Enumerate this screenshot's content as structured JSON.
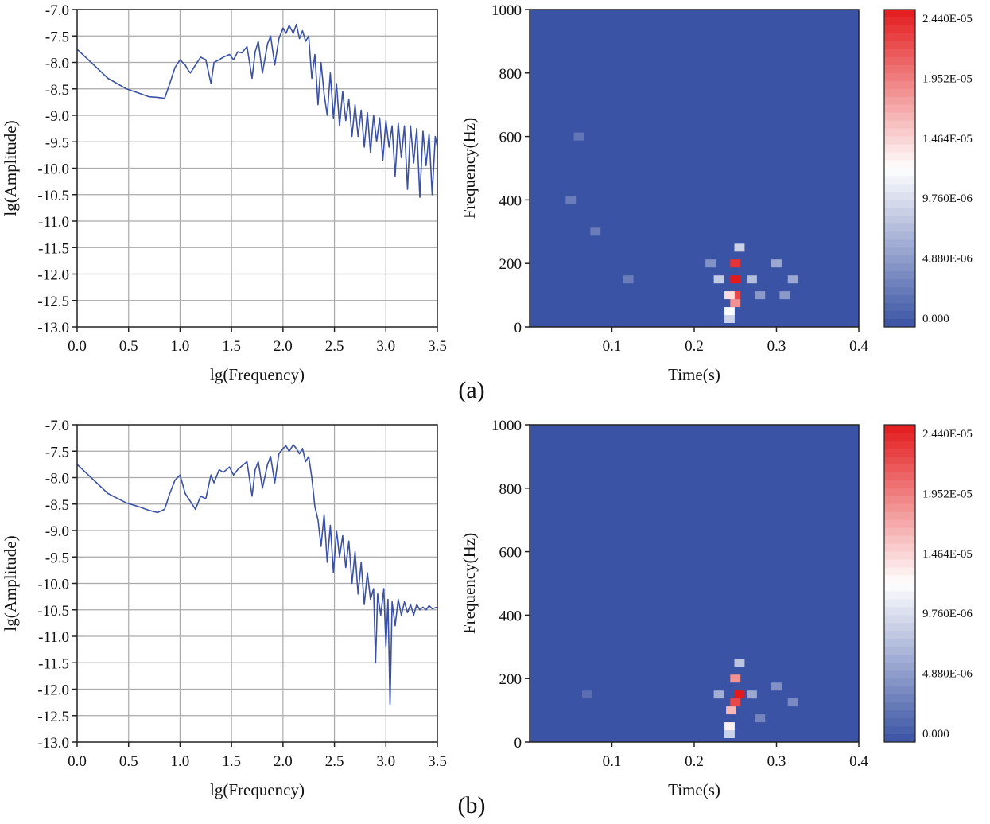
{
  "figure": {
    "panels": [
      {
        "label": "(a)",
        "spectrum_id": "a-spectrum",
        "spectrogram_id": "a-spectrogram"
      },
      {
        "label": "(b)",
        "spectrum_id": "b-spectrum",
        "spectrogram_id": "b-spectrogram"
      }
    ]
  },
  "colors": {
    "line": "#3a51a6",
    "heat_low": "#3a53a4",
    "heat_mid": "#ffffff",
    "heat_high": "#e31a1c",
    "grid": "#aaaaaa",
    "axis": "#222222"
  },
  "chart_data": [
    {
      "id": "a-spectrum",
      "type": "line",
      "title": "",
      "xlabel": "lg(Frequency)",
      "ylabel": "lg(Amplitude)",
      "xlim": [
        0.0,
        3.5
      ],
      "ylim": [
        -13.0,
        -7.0
      ],
      "xticks": [
        "0.0",
        "0.5",
        "1.0",
        "1.5",
        "2.0",
        "2.5",
        "3.0",
        "3.5"
      ],
      "yticks": [
        "-7.0",
        "-7.5",
        "-8.0",
        "-8.5",
        "-9.0",
        "-9.5",
        "-10.0",
        "-10.5",
        "-11.0",
        "-11.5",
        "-12.0",
        "-12.5",
        "-13.0"
      ],
      "grid": true,
      "series": [
        {
          "name": "spectrum",
          "x": [
            0.0,
            0.3,
            0.48,
            0.6,
            0.7,
            0.78,
            0.85,
            0.9,
            0.95,
            1.0,
            1.05,
            1.08,
            1.1,
            1.15,
            1.2,
            1.25,
            1.3,
            1.33,
            1.38,
            1.42,
            1.48,
            1.52,
            1.56,
            1.6,
            1.65,
            1.7,
            1.73,
            1.76,
            1.8,
            1.85,
            1.88,
            1.92,
            1.96,
            2.0,
            2.03,
            2.06,
            2.1,
            2.13,
            2.16,
            2.19,
            2.22,
            2.25,
            2.28,
            2.31,
            2.34,
            2.37,
            2.4,
            2.43,
            2.46,
            2.49,
            2.52,
            2.55,
            2.58,
            2.61,
            2.64,
            2.67,
            2.7,
            2.73,
            2.76,
            2.79,
            2.82,
            2.85,
            2.88,
            2.91,
            2.94,
            2.97,
            3.0,
            3.03,
            3.06,
            3.09,
            3.12,
            3.15,
            3.18,
            3.21,
            3.24,
            3.27,
            3.3,
            3.33,
            3.36,
            3.39,
            3.42,
            3.45,
            3.48,
            3.5
          ],
          "values": [
            -7.75,
            -8.3,
            -8.5,
            -8.58,
            -8.65,
            -8.66,
            -8.68,
            -8.4,
            -8.1,
            -7.95,
            -8.05,
            -8.15,
            -8.2,
            -8.05,
            -7.9,
            -7.95,
            -8.4,
            -8.0,
            -7.95,
            -7.9,
            -7.85,
            -7.95,
            -7.8,
            -7.82,
            -7.7,
            -8.3,
            -7.8,
            -7.6,
            -8.2,
            -7.65,
            -7.5,
            -8.05,
            -7.55,
            -7.35,
            -7.45,
            -7.3,
            -7.45,
            -7.28,
            -7.55,
            -7.4,
            -7.6,
            -7.5,
            -8.3,
            -7.85,
            -8.8,
            -8.0,
            -8.6,
            -9.0,
            -8.2,
            -9.05,
            -8.4,
            -9.2,
            -8.55,
            -9.1,
            -8.7,
            -9.4,
            -8.8,
            -9.4,
            -8.9,
            -9.6,
            -8.95,
            -9.7,
            -9.0,
            -9.5,
            -9.05,
            -9.85,
            -9.1,
            -9.6,
            -9.2,
            -10.15,
            -9.15,
            -9.8,
            -9.2,
            -10.4,
            -9.2,
            -9.9,
            -9.25,
            -10.55,
            -9.3,
            -9.95,
            -9.35,
            -10.5,
            -9.4,
            -9.6
          ]
        }
      ]
    },
    {
      "id": "a-spectrogram",
      "type": "heatmap",
      "title": "",
      "xlabel": "Time(s)",
      "ylabel": "Frequency(Hz)",
      "xlim": [
        0.0,
        0.4
      ],
      "ylim": [
        0,
        1000
      ],
      "xticks": [
        "0.1",
        "0.2",
        "0.3",
        "0.4"
      ],
      "yticks": [
        "0",
        "200",
        "400",
        "600",
        "800",
        "1000"
      ],
      "colorbar": {
        "min": 0.0,
        "max": 2.44e-05,
        "labels": [
          "2.440E-05",
          "1.952E-05",
          "1.464E-05",
          "9.760E-06",
          "4.880E-06",
          "0.000"
        ]
      },
      "hotspots": [
        {
          "time": 0.25,
          "freq": 150,
          "value": 2.44e-05
        },
        {
          "time": 0.25,
          "freq": 200,
          "value": 2.3e-05
        },
        {
          "time": 0.25,
          "freq": 100,
          "value": 2.2e-05
        },
        {
          "time": 0.25,
          "freq": 75,
          "value": 1.8e-05
        },
        {
          "time": 0.243,
          "freq": 100,
          "value": 1.4e-05
        },
        {
          "time": 0.243,
          "freq": 50,
          "value": 1.2e-05
        },
        {
          "time": 0.255,
          "freq": 250,
          "value": 9e-06
        },
        {
          "time": 0.243,
          "freq": 25,
          "value": 9e-06
        },
        {
          "time": 0.23,
          "freq": 150,
          "value": 8.5e-06
        },
        {
          "time": 0.27,
          "freq": 150,
          "value": 7.5e-06
        },
        {
          "time": 0.3,
          "freq": 200,
          "value": 6e-06
        },
        {
          "time": 0.32,
          "freq": 150,
          "value": 6e-06
        },
        {
          "time": 0.28,
          "freq": 100,
          "value": 5e-06
        },
        {
          "time": 0.31,
          "freq": 100,
          "value": 5e-06
        },
        {
          "time": 0.22,
          "freq": 200,
          "value": 4.5e-06
        },
        {
          "time": 0.05,
          "freq": 400,
          "value": 3e-06
        },
        {
          "time": 0.08,
          "freq": 300,
          "value": 3e-06
        },
        {
          "time": 0.12,
          "freq": 150,
          "value": 3e-06
        },
        {
          "time": 0.06,
          "freq": 600,
          "value": 2.5e-06
        }
      ]
    },
    {
      "id": "b-spectrum",
      "type": "line",
      "title": "",
      "xlabel": "lg(Frequency)",
      "ylabel": "lg(Amplitude)",
      "xlim": [
        0.0,
        3.5
      ],
      "ylim": [
        -13.0,
        -7.0
      ],
      "xticks": [
        "0.0",
        "0.5",
        "1.0",
        "1.5",
        "2.0",
        "2.5",
        "3.0",
        "3.5"
      ],
      "yticks": [
        "-7.0",
        "-7.5",
        "-8.0",
        "-8.5",
        "-9.0",
        "-9.5",
        "-10.0",
        "-10.5",
        "-11.0",
        "-11.5",
        "-12.0",
        "-12.5",
        "-13.0"
      ],
      "grid": true,
      "series": [
        {
          "name": "spectrum",
          "x": [
            0.0,
            0.3,
            0.48,
            0.6,
            0.7,
            0.78,
            0.85,
            0.9,
            0.95,
            1.0,
            1.05,
            1.1,
            1.15,
            1.2,
            1.25,
            1.3,
            1.33,
            1.38,
            1.42,
            1.48,
            1.52,
            1.56,
            1.6,
            1.65,
            1.7,
            1.73,
            1.76,
            1.8,
            1.85,
            1.88,
            1.92,
            1.96,
            2.0,
            2.03,
            2.06,
            2.1,
            2.13,
            2.16,
            2.19,
            2.22,
            2.25,
            2.28,
            2.31,
            2.34,
            2.37,
            2.4,
            2.43,
            2.46,
            2.49,
            2.52,
            2.55,
            2.58,
            2.61,
            2.64,
            2.67,
            2.7,
            2.73,
            2.76,
            2.79,
            2.82,
            2.85,
            2.88,
            2.9,
            2.92,
            2.95,
            2.98,
            3.0,
            3.02,
            3.04,
            3.06,
            3.09,
            3.12,
            3.15,
            3.18,
            3.21,
            3.24,
            3.27,
            3.3,
            3.33,
            3.36,
            3.39,
            3.42,
            3.45,
            3.5
          ],
          "values": [
            -7.75,
            -8.3,
            -8.48,
            -8.55,
            -8.62,
            -8.66,
            -8.6,
            -8.3,
            -8.05,
            -7.95,
            -8.3,
            -8.45,
            -8.6,
            -8.35,
            -8.4,
            -7.95,
            -8.1,
            -7.85,
            -7.9,
            -7.8,
            -7.95,
            -7.85,
            -7.78,
            -7.7,
            -8.35,
            -7.85,
            -7.7,
            -8.2,
            -7.75,
            -7.6,
            -8.1,
            -7.55,
            -7.45,
            -7.4,
            -7.5,
            -7.38,
            -7.45,
            -7.55,
            -7.45,
            -7.7,
            -7.6,
            -8.0,
            -8.55,
            -8.8,
            -9.3,
            -8.7,
            -9.6,
            -8.9,
            -9.8,
            -9.0,
            -9.5,
            -9.1,
            -9.7,
            -9.2,
            -10.0,
            -9.4,
            -10.2,
            -9.6,
            -10.4,
            -9.8,
            -10.3,
            -10.1,
            -11.5,
            -10.2,
            -10.6,
            -10.1,
            -11.2,
            -10.3,
            -12.3,
            -10.35,
            -10.8,
            -10.3,
            -10.6,
            -10.35,
            -10.55,
            -10.4,
            -10.6,
            -10.4,
            -10.5,
            -10.45,
            -10.5,
            -10.42,
            -10.48,
            -10.45
          ]
        }
      ]
    },
    {
      "id": "b-spectrogram",
      "type": "heatmap",
      "title": "",
      "xlabel": "Time(s)",
      "ylabel": "Frequency(Hz)",
      "xlim": [
        0.0,
        0.4
      ],
      "ylim": [
        0,
        1000
      ],
      "xticks": [
        "0.1",
        "0.2",
        "0.3",
        "0.4"
      ],
      "yticks": [
        "0",
        "200",
        "400",
        "600",
        "800",
        "1000"
      ],
      "colorbar": {
        "min": 0.0,
        "max": 2.44e-05,
        "labels": [
          "2.440E-05",
          "1.952E-05",
          "1.464E-05",
          "9.760E-06",
          "4.880E-06",
          "0.000"
        ]
      },
      "hotspots": [
        {
          "time": 0.255,
          "freq": 150,
          "value": 2.44e-05
        },
        {
          "time": 0.25,
          "freq": 125,
          "value": 2.2e-05
        },
        {
          "time": 0.25,
          "freq": 200,
          "value": 1.8e-05
        },
        {
          "time": 0.245,
          "freq": 100,
          "value": 1.6e-05
        },
        {
          "time": 0.243,
          "freq": 50,
          "value": 1.3e-05
        },
        {
          "time": 0.243,
          "freq": 25,
          "value": 9e-06
        },
        {
          "time": 0.255,
          "freq": 250,
          "value": 8e-06
        },
        {
          "time": 0.23,
          "freq": 150,
          "value": 6.5e-06
        },
        {
          "time": 0.27,
          "freq": 150,
          "value": 6e-06
        },
        {
          "time": 0.3,
          "freq": 175,
          "value": 4.5e-06
        },
        {
          "time": 0.32,
          "freq": 125,
          "value": 4e-06
        },
        {
          "time": 0.28,
          "freq": 75,
          "value": 3.5e-06
        },
        {
          "time": 0.07,
          "freq": 150,
          "value": 2e-06
        }
      ]
    }
  ]
}
